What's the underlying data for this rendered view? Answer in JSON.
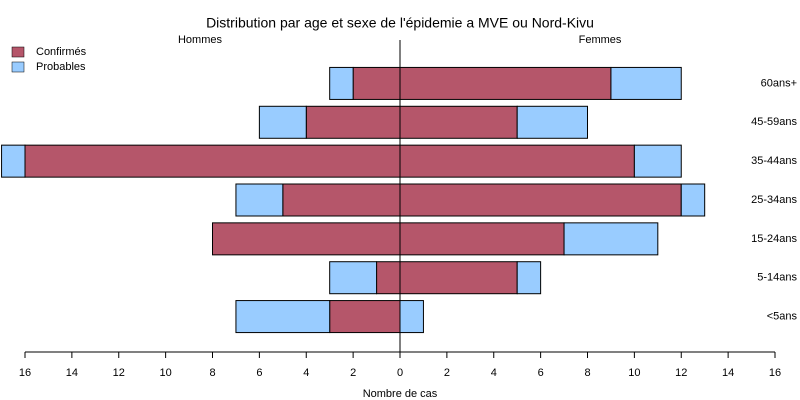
{
  "chart_data": {
    "type": "pyramid",
    "title": "Distribution par age et sexe de l'épidemie a MVE ou Nord-Kivu",
    "left_label": "Hommes",
    "right_label": "Femmes",
    "x_label": "Nombre de cas",
    "categories": [
      "<5ans",
      "5-14ans",
      "15-24ans",
      "25-34ans",
      "35-44ans",
      "45-59ans",
      "60ans+"
    ],
    "series": [
      {
        "name": "Confirmés",
        "color": "#b5566a",
        "left_values": [
          3,
          1,
          8,
          5,
          16,
          4,
          2
        ],
        "right_values": [
          0,
          5,
          7,
          12,
          10,
          5,
          9
        ]
      },
      {
        "name": "Probables",
        "color": "#99ccff",
        "left_values": [
          4,
          2,
          0,
          2,
          1,
          2,
          1
        ],
        "right_values": [
          1,
          1,
          4,
          1,
          2,
          3,
          3
        ]
      }
    ],
    "xlim": [
      -16,
      16
    ],
    "xticks": [
      {
        "value": -16,
        "label": "16"
      },
      {
        "value": -14,
        "label": "14"
      },
      {
        "value": -12,
        "label": "12"
      },
      {
        "value": -10,
        "label": "10"
      },
      {
        "value": -8,
        "label": "8"
      },
      {
        "value": -6,
        "label": "6"
      },
      {
        "value": -4,
        "label": "4"
      },
      {
        "value": -2,
        "label": "2"
      },
      0,
      2,
      4,
      6,
      8,
      10,
      12,
      14,
      16
    ],
    "legend": "top-left"
  }
}
